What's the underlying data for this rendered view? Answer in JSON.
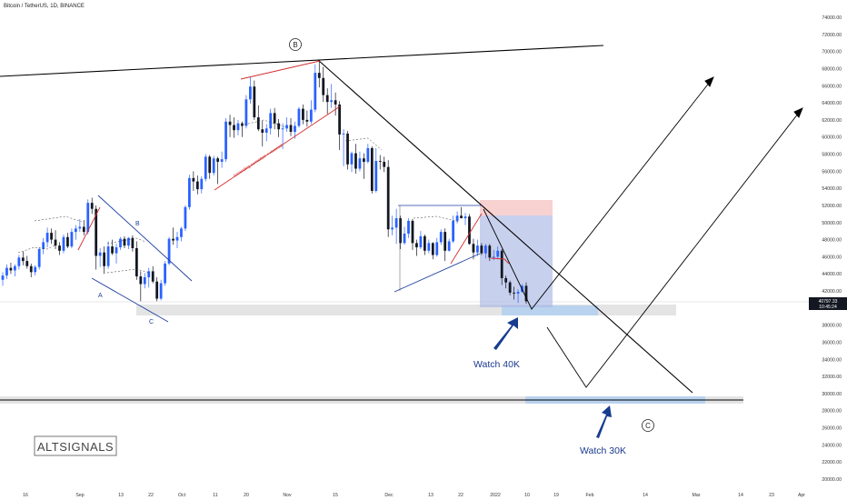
{
  "header": {
    "title": "Bitcoin / TetherUS, 1D, BINANCE"
  },
  "chart_data": {
    "type": "candlestick",
    "symbol": "Bitcoin / TetherUS, 1D, BINANCE",
    "ylim": [
      20000,
      74000
    ],
    "y_ticks": [
      "74000.00",
      "72000.00",
      "70000.00",
      "68000.00",
      "66000.00",
      "64000.00",
      "62000.00",
      "60000.00",
      "58000.00",
      "56000.00",
      "54000.00",
      "52000.00",
      "50000.00",
      "48000.00",
      "46000.00",
      "44000.00",
      "42000.00",
      "40000.00",
      "38000.00",
      "36000.00",
      "34000.00",
      "32000.00",
      "30000.00",
      "28000.00",
      "26000.00",
      "24000.00",
      "22000.00",
      "20000.00"
    ],
    "x_ticks": [
      "16",
      "Sep",
      "13",
      "22",
      "Oct",
      "11",
      "20",
      "Nov",
      "15",
      "Dec",
      "13",
      "22",
      "2022",
      "10",
      "19",
      "Feb",
      "14",
      "Mar",
      "14",
      "23",
      "Apr"
    ],
    "current_price": "40797.33",
    "countdown": "10:45:24",
    "candles": [
      {
        "o": 43300,
        "h": 44200,
        "l": 42600,
        "c": 43800
      },
      {
        "o": 43800,
        "h": 45100,
        "l": 43400,
        "c": 44700
      },
      {
        "o": 44700,
        "h": 45300,
        "l": 44000,
        "c": 44400
      },
      {
        "o": 44400,
        "h": 45100,
        "l": 43700,
        "c": 44900
      },
      {
        "o": 44900,
        "h": 46200,
        "l": 44500,
        "c": 45900
      },
      {
        "o": 45900,
        "h": 46600,
        "l": 45000,
        "c": 45500
      },
      {
        "o": 45500,
        "h": 46100,
        "l": 44600,
        "c": 44900
      },
      {
        "o": 44900,
        "h": 45200,
        "l": 43600,
        "c": 44200
      },
      {
        "o": 44200,
        "h": 45000,
        "l": 43800,
        "c": 44800
      },
      {
        "o": 44800,
        "h": 47100,
        "l": 44500,
        "c": 46900
      },
      {
        "o": 46900,
        "h": 48200,
        "l": 46300,
        "c": 47700
      },
      {
        "o": 47700,
        "h": 49400,
        "l": 47100,
        "c": 48800
      },
      {
        "o": 48800,
        "h": 49300,
        "l": 47500,
        "c": 48000
      },
      {
        "o": 48000,
        "h": 49100,
        "l": 46900,
        "c": 47300
      },
      {
        "o": 47300,
        "h": 47700,
        "l": 46200,
        "c": 46700
      },
      {
        "o": 46700,
        "h": 48600,
        "l": 46400,
        "c": 48300
      },
      {
        "o": 48300,
        "h": 48800,
        "l": 47000,
        "c": 47200
      },
      {
        "o": 47200,
        "h": 49300,
        "l": 47000,
        "c": 48900
      },
      {
        "o": 48900,
        "h": 49700,
        "l": 48000,
        "c": 49300
      },
      {
        "o": 49300,
        "h": 50400,
        "l": 48900,
        "c": 49500
      },
      {
        "o": 49500,
        "h": 50300,
        "l": 48500,
        "c": 48900
      },
      {
        "o": 48900,
        "h": 52700,
        "l": 48600,
        "c": 52300
      },
      {
        "o": 52300,
        "h": 52900,
        "l": 51000,
        "c": 51600
      },
      {
        "o": 51600,
        "h": 52000,
        "l": 44500,
        "c": 46100
      },
      {
        "o": 46100,
        "h": 47000,
        "l": 44800,
        "c": 46500
      },
      {
        "o": 46500,
        "h": 47200,
        "l": 44000,
        "c": 44900
      },
      {
        "o": 44900,
        "h": 47800,
        "l": 44600,
        "c": 47200
      },
      {
        "o": 47200,
        "h": 48000,
        "l": 46200,
        "c": 46400
      },
      {
        "o": 46400,
        "h": 47500,
        "l": 45200,
        "c": 47100
      },
      {
        "o": 47100,
        "h": 48300,
        "l": 46800,
        "c": 48100
      },
      {
        "o": 48100,
        "h": 48400,
        "l": 47000,
        "c": 47300
      },
      {
        "o": 47300,
        "h": 48300,
        "l": 46900,
        "c": 48200
      },
      {
        "o": 48200,
        "h": 48500,
        "l": 46600,
        "c": 47000
      },
      {
        "o": 47000,
        "h": 47800,
        "l": 43300,
        "c": 43700
      },
      {
        "o": 43700,
        "h": 44300,
        "l": 40800,
        "c": 42800
      },
      {
        "o": 42800,
        "h": 44100,
        "l": 42300,
        "c": 43600
      },
      {
        "o": 43600,
        "h": 44700,
        "l": 42400,
        "c": 44300
      },
      {
        "o": 44300,
        "h": 44900,
        "l": 42900,
        "c": 43100
      },
      {
        "o": 43100,
        "h": 43600,
        "l": 40800,
        "c": 41100
      },
      {
        "o": 41100,
        "h": 43300,
        "l": 40900,
        "c": 42900
      },
      {
        "o": 42900,
        "h": 45500,
        "l": 42600,
        "c": 45200
      },
      {
        "o": 45200,
        "h": 48300,
        "l": 45000,
        "c": 48100
      },
      {
        "o": 48100,
        "h": 49400,
        "l": 47400,
        "c": 47900
      },
      {
        "o": 47900,
        "h": 48900,
        "l": 47000,
        "c": 48300
      },
      {
        "o": 48300,
        "h": 49500,
        "l": 47800,
        "c": 49300
      },
      {
        "o": 49300,
        "h": 52000,
        "l": 49000,
        "c": 51800
      },
      {
        "o": 51800,
        "h": 55600,
        "l": 51500,
        "c": 55200
      },
      {
        "o": 55200,
        "h": 56000,
        "l": 53700,
        "c": 54800
      },
      {
        "o": 54800,
        "h": 55500,
        "l": 53300,
        "c": 53900
      },
      {
        "o": 53900,
        "h": 55400,
        "l": 53400,
        "c": 55100
      },
      {
        "o": 55100,
        "h": 58000,
        "l": 54800,
        "c": 57700
      },
      {
        "o": 57700,
        "h": 57900,
        "l": 55100,
        "c": 55800
      },
      {
        "o": 55800,
        "h": 57800,
        "l": 55500,
        "c": 57500
      },
      {
        "o": 57500,
        "h": 57700,
        "l": 54500,
        "c": 57100
      },
      {
        "o": 57100,
        "h": 58300,
        "l": 56400,
        "c": 57400
      },
      {
        "o": 57400,
        "h": 62200,
        "l": 57100,
        "c": 61800
      },
      {
        "o": 61800,
        "h": 62600,
        "l": 60000,
        "c": 61400
      },
      {
        "o": 61400,
        "h": 62300,
        "l": 59900,
        "c": 60800
      },
      {
        "o": 60800,
        "h": 62000,
        "l": 60200,
        "c": 61600
      },
      {
        "o": 61600,
        "h": 61800,
        "l": 60000,
        "c": 61300
      },
      {
        "o": 61300,
        "h": 64900,
        "l": 61000,
        "c": 64400
      },
      {
        "o": 64400,
        "h": 67000,
        "l": 63900,
        "c": 65900
      },
      {
        "o": 65900,
        "h": 66600,
        "l": 62000,
        "c": 62300
      },
      {
        "o": 62300,
        "h": 63700,
        "l": 60700,
        "c": 60900
      },
      {
        "o": 60900,
        "h": 61900,
        "l": 58900,
        "c": 60500
      },
      {
        "o": 60500,
        "h": 61500,
        "l": 59500,
        "c": 61000
      },
      {
        "o": 61000,
        "h": 63300,
        "l": 60300,
        "c": 62800
      },
      {
        "o": 62800,
        "h": 63400,
        "l": 60900,
        "c": 61600
      },
      {
        "o": 61600,
        "h": 62100,
        "l": 60000,
        "c": 60900
      },
      {
        "o": 60900,
        "h": 61600,
        "l": 58600,
        "c": 61000
      },
      {
        "o": 61000,
        "h": 62300,
        "l": 60600,
        "c": 61400
      },
      {
        "o": 61400,
        "h": 62200,
        "l": 60100,
        "c": 60600
      },
      {
        "o": 60600,
        "h": 61800,
        "l": 59800,
        "c": 61300
      },
      {
        "o": 61300,
        "h": 63500,
        "l": 61100,
        "c": 63300
      },
      {
        "o": 63300,
        "h": 63800,
        "l": 61500,
        "c": 62000
      },
      {
        "o": 62000,
        "h": 63100,
        "l": 61200,
        "c": 61800
      },
      {
        "o": 61800,
        "h": 64300,
        "l": 61500,
        "c": 63200
      },
      {
        "o": 63200,
        "h": 68500,
        "l": 62900,
        "c": 67500
      },
      {
        "o": 67500,
        "h": 69000,
        "l": 65800,
        "c": 66900
      },
      {
        "o": 66900,
        "h": 68200,
        "l": 64100,
        "c": 64900
      },
      {
        "o": 64900,
        "h": 65700,
        "l": 62700,
        "c": 64100
      },
      {
        "o": 64100,
        "h": 66200,
        "l": 63400,
        "c": 64300
      },
      {
        "o": 64300,
        "h": 65200,
        "l": 62500,
        "c": 63800
      },
      {
        "o": 63800,
        "h": 64200,
        "l": 58500,
        "c": 60300
      },
      {
        "o": 60300,
        "h": 60900,
        "l": 56600,
        "c": 60400
      },
      {
        "o": 60400,
        "h": 60700,
        "l": 56200,
        "c": 56800
      },
      {
        "o": 56800,
        "h": 58300,
        "l": 55900,
        "c": 58100
      },
      {
        "o": 58100,
        "h": 59200,
        "l": 55700,
        "c": 56300
      },
      {
        "o": 56300,
        "h": 58300,
        "l": 56000,
        "c": 57500
      },
      {
        "o": 57500,
        "h": 58100,
        "l": 55100,
        "c": 57100
      },
      {
        "o": 57100,
        "h": 59200,
        "l": 56900,
        "c": 58700
      },
      {
        "o": 58700,
        "h": 58900,
        "l": 53400,
        "c": 53700
      },
      {
        "o": 53700,
        "h": 58700,
        "l": 53500,
        "c": 57200
      },
      {
        "o": 57200,
        "h": 57900,
        "l": 56200,
        "c": 57100
      },
      {
        "o": 57100,
        "h": 57700,
        "l": 55900,
        "c": 56500
      },
      {
        "o": 56500,
        "h": 57300,
        "l": 48300,
        "c": 49200
      },
      {
        "o": 49200,
        "h": 50800,
        "l": 48500,
        "c": 49400
      },
      {
        "o": 49400,
        "h": 51600,
        "l": 47500,
        "c": 50500
      },
      {
        "o": 50500,
        "h": 50800,
        "l": 46900,
        "c": 47600
      },
      {
        "o": 47600,
        "h": 49500,
        "l": 47400,
        "c": 48700
      },
      {
        "o": 48700,
        "h": 50500,
        "l": 48200,
        "c": 50200
      },
      {
        "o": 50200,
        "h": 50400,
        "l": 46800,
        "c": 47600
      },
      {
        "o": 47600,
        "h": 48000,
        "l": 46100,
        "c": 47100
      },
      {
        "o": 47100,
        "h": 49000,
        "l": 46900,
        "c": 48400
      },
      {
        "o": 48400,
        "h": 48600,
        "l": 46200,
        "c": 46700
      },
      {
        "o": 46700,
        "h": 48000,
        "l": 46400,
        "c": 47600
      },
      {
        "o": 47600,
        "h": 47700,
        "l": 45700,
        "c": 46200
      },
      {
        "o": 46200,
        "h": 48200,
        "l": 46000,
        "c": 47700
      },
      {
        "o": 47700,
        "h": 49200,
        "l": 47400,
        "c": 48900
      },
      {
        "o": 48900,
        "h": 49300,
        "l": 45500,
        "c": 46700
      },
      {
        "o": 46700,
        "h": 48100,
        "l": 46600,
        "c": 47800
      },
      {
        "o": 47800,
        "h": 50800,
        "l": 47600,
        "c": 50200
      },
      {
        "o": 50200,
        "h": 51300,
        "l": 49900,
        "c": 50800
      },
      {
        "o": 50800,
        "h": 51800,
        "l": 50500,
        "c": 50500
      },
      {
        "o": 50500,
        "h": 51100,
        "l": 49700,
        "c": 50700
      },
      {
        "o": 50700,
        "h": 51000,
        "l": 47400,
        "c": 47500
      },
      {
        "o": 47500,
        "h": 48100,
        "l": 45700,
        "c": 46500
      },
      {
        "o": 46500,
        "h": 48000,
        "l": 46100,
        "c": 47300
      },
      {
        "o": 47300,
        "h": 47600,
        "l": 46200,
        "c": 46400
      },
      {
        "o": 46400,
        "h": 47500,
        "l": 45800,
        "c": 47300
      },
      {
        "o": 47300,
        "h": 47500,
        "l": 45500,
        "c": 45900
      },
      {
        "o": 45900,
        "h": 46800,
        "l": 45600,
        "c": 46000
      },
      {
        "o": 46000,
        "h": 47200,
        "l": 45700,
        "c": 46700
      },
      {
        "o": 46700,
        "h": 46900,
        "l": 42700,
        "c": 43500
      },
      {
        "o": 43500,
        "h": 43800,
        "l": 42300,
        "c": 43000
      },
      {
        "o": 43000,
        "h": 43200,
        "l": 41500,
        "c": 41800
      },
      {
        "o": 41800,
        "h": 42500,
        "l": 41000,
        "c": 41700
      },
      {
        "o": 41700,
        "h": 42200,
        "l": 40600,
        "c": 41900
      },
      {
        "o": 41900,
        "h": 42800,
        "l": 41800,
        "c": 42600
      },
      {
        "o": 42600,
        "h": 43000,
        "l": 40500,
        "c": 40800
      }
    ],
    "annotations": {
      "wave_labels": [
        "B",
        "C"
      ],
      "pattern_labels": [
        "A",
        "B",
        "C"
      ],
      "wedge_text": "Ascending correction + reversal",
      "watch_labels": [
        "Watch 40K",
        "Watch 30K"
      ],
      "support_zones": [
        40000,
        30000
      ]
    },
    "colors": {
      "bull": "#2962ff",
      "bear": "#131722",
      "trendline": "#000000",
      "pattern_line": "#1e3fa0",
      "wedge_line": "#d32f2f",
      "zone_grey": "#e3e3e3",
      "zone_blue": "#b9d3ef",
      "position_blue": "#aab6e3",
      "position_red": "#f7c7c7",
      "arrow_blue": "#173c8f",
      "price_tag": "#131722"
    }
  },
  "watermark": {
    "text": "ALTSIGNALS"
  }
}
